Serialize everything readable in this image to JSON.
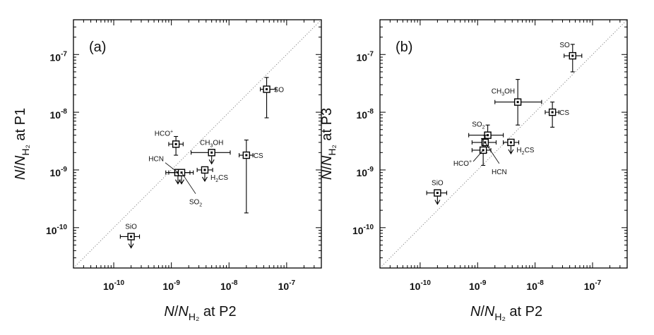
{
  "chart_data": [
    {
      "type": "scatter",
      "panel_label": "(a)",
      "xlabel": {
        "prefix": "N/N",
        "sub": "H₂",
        "suffix": " at P2"
      },
      "ylabel": {
        "prefix": "N/N",
        "sub": "H₂",
        "suffix": " at P1"
      },
      "x_scale": "log",
      "y_scale": "log",
      "xlim": [
        2e-11,
        4e-07
      ],
      "ylim": [
        2e-11,
        4e-07
      ],
      "x_ticks": [
        {
          "value": 1e-10,
          "base": "10",
          "exp": "-10"
        },
        {
          "value": 1e-09,
          "base": "10",
          "exp": "-9"
        },
        {
          "value": 1e-08,
          "base": "10",
          "exp": "-8"
        },
        {
          "value": 1e-07,
          "base": "10",
          "exp": "-7"
        }
      ],
      "y_ticks": [
        {
          "value": 1e-10,
          "base": "10",
          "exp": "-10"
        },
        {
          "value": 1e-09,
          "base": "10",
          "exp": "-9"
        },
        {
          "value": 1e-08,
          "base": "10",
          "exp": "-8"
        },
        {
          "value": 1e-07,
          "base": "10",
          "exp": "-7"
        }
      ],
      "diagonal": "y = x",
      "points": [
        {
          "label": "SO",
          "label_parts": [
            [
              "SO",
              "n"
            ]
          ],
          "x": 4.5e-08,
          "y": 2.5e-08,
          "x_err": [
            3.5e-08,
            6.5e-08
          ],
          "y_err": [
            8e-09,
            4e-08
          ],
          "upper_limit": false,
          "label_anchor": "right"
        },
        {
          "label": "CS",
          "label_parts": [
            [
              "CS",
              "n"
            ]
          ],
          "x": 2e-08,
          "y": 1.8e-09,
          "x_err": [
            1.5e-08,
            2.6e-08
          ],
          "y_err": [
            1.8e-10,
            3.3e-09
          ],
          "upper_limit": false,
          "label_anchor": "right"
        },
        {
          "label": "HCO+",
          "label_parts": [
            [
              "HCO",
              "n"
            ],
            [
              "+",
              "sup"
            ]
          ],
          "x": 1.2e-09,
          "y": 2.8e-09,
          "x_err": [
            9e-10,
            1.6e-09
          ],
          "y_err": [
            1.8e-09,
            3.8e-09
          ],
          "upper_limit": false,
          "label_anchor": "upleft"
        },
        {
          "label": "CH3OH",
          "label_parts": [
            [
              "CH",
              "n"
            ],
            [
              "3",
              "sub"
            ],
            [
              "OH",
              "n"
            ]
          ],
          "x": 5e-09,
          "y": 2e-09,
          "x_err": [
            2.2e-09,
            1.05e-08
          ],
          "y_err": null,
          "upper_limit": true,
          "label_anchor": "up"
        },
        {
          "label": "HCN",
          "label_parts": [
            [
              "HCN",
              "n"
            ]
          ],
          "x": 1.3e-09,
          "y": 9e-10,
          "x_err": [
            8e-10,
            2.1e-09
          ],
          "y_err": null,
          "upper_limit": true,
          "label_anchor": "leader-ul"
        },
        {
          "label": "SO2",
          "label_parts": [
            [
              "SO",
              "n"
            ],
            [
              "2",
              "sub"
            ]
          ],
          "x": 1.5e-09,
          "y": 9e-10,
          "x_err": [
            9e-10,
            2.4e-09
          ],
          "y_err": null,
          "upper_limit": true,
          "label_anchor": "leader-dr"
        },
        {
          "label": "H2CS",
          "label_parts": [
            [
              "H",
              "n"
            ],
            [
              "2",
              "sub"
            ],
            [
              "CS",
              "n"
            ]
          ],
          "x": 3.8e-09,
          "y": 1e-09,
          "x_err": [
            2.8e-09,
            5.2e-09
          ],
          "y_err": null,
          "upper_limit": true,
          "label_anchor": "right-low"
        },
        {
          "label": "SiO",
          "label_parts": [
            [
              "SiO",
              "n"
            ]
          ],
          "x": 2e-10,
          "y": 7e-11,
          "x_err": [
            1.3e-10,
            2.8e-10
          ],
          "y_err": null,
          "upper_limit": true,
          "label_anchor": "up"
        }
      ]
    },
    {
      "type": "scatter",
      "panel_label": "(b)",
      "xlabel": {
        "prefix": "N/N",
        "sub": "H₂",
        "suffix": " at P2"
      },
      "ylabel": {
        "prefix": "N/N",
        "sub": "H₂",
        "suffix": " at P3"
      },
      "x_scale": "log",
      "y_scale": "log",
      "xlim": [
        2e-11,
        4e-07
      ],
      "ylim": [
        2e-11,
        4e-07
      ],
      "x_ticks": [
        {
          "value": 1e-10,
          "base": "10",
          "exp": "-10"
        },
        {
          "value": 1e-09,
          "base": "10",
          "exp": "-9"
        },
        {
          "value": 1e-08,
          "base": "10",
          "exp": "-8"
        },
        {
          "value": 1e-07,
          "base": "10",
          "exp": "-7"
        }
      ],
      "y_ticks": [
        {
          "value": 1e-10,
          "base": "10",
          "exp": "-10"
        },
        {
          "value": 1e-09,
          "base": "10",
          "exp": "-9"
        },
        {
          "value": 1e-08,
          "base": "10",
          "exp": "-8"
        },
        {
          "value": 1e-07,
          "base": "10",
          "exp": "-7"
        }
      ],
      "diagonal": "y = x",
      "points": [
        {
          "label": "SO",
          "label_parts": [
            [
              "SO",
              "n"
            ]
          ],
          "x": 4.5e-08,
          "y": 9.5e-08,
          "x_err": [
            3.2e-08,
            6.5e-08
          ],
          "y_err": [
            5e-08,
            1.5e-07
          ],
          "upper_limit": false,
          "label_anchor": "upleft"
        },
        {
          "label": "CH3OH",
          "label_parts": [
            [
              "CH",
              "n"
            ],
            [
              "3",
              "sub"
            ],
            [
              "OH",
              "n"
            ]
          ],
          "x": 5e-09,
          "y": 1.5e-08,
          "x_err": [
            2e-09,
            1.3e-08
          ],
          "y_err": [
            6e-09,
            3.7e-08
          ],
          "upper_limit": false,
          "label_anchor": "upleft"
        },
        {
          "label": "CS",
          "label_parts": [
            [
              "CS",
              "n"
            ]
          ],
          "x": 2e-08,
          "y": 1e-08,
          "x_err": [
            1.5e-08,
            2.6e-08
          ],
          "y_err": [
            5.5e-09,
            1.5e-08
          ],
          "upper_limit": false,
          "label_anchor": "right"
        },
        {
          "label": "SO2",
          "label_parts": [
            [
              "SO",
              "n"
            ],
            [
              "2",
              "sub"
            ]
          ],
          "x": 1.5e-09,
          "y": 4e-09,
          "x_err": [
            7e-10,
            2.8e-09
          ],
          "y_err": [
            2.5e-09,
            6e-09
          ],
          "upper_limit": false,
          "label_anchor": "upleft"
        },
        {
          "label": "H2CS",
          "label_parts": [
            [
              "H",
              "n"
            ],
            [
              "2",
              "sub"
            ],
            [
              "CS",
              "n"
            ]
          ],
          "x": 3.8e-09,
          "y": 3e-09,
          "x_err": [
            2.8e-09,
            5.2e-09
          ],
          "y_err": null,
          "upper_limit": true,
          "label_anchor": "right-low"
        },
        {
          "label": "HCN",
          "label_parts": [
            [
              "HCN",
              "n"
            ]
          ],
          "x": 1.35e-09,
          "y": 3e-09,
          "x_err": [
            8e-10,
            2.1e-09
          ],
          "y_err": [
            2e-09,
            4e-09
          ],
          "upper_limit": false,
          "label_anchor": "leader-dr"
        },
        {
          "label": "HCO+",
          "label_parts": [
            [
              "HCO",
              "n"
            ],
            [
              "+",
              "sup"
            ]
          ],
          "x": 1.25e-09,
          "y": 2.2e-09,
          "x_err": [
            8e-10,
            1.7e-09
          ],
          "y_err": [
            1.2e-09,
            3.5e-09
          ],
          "upper_limit": false,
          "label_anchor": "leader-dl"
        },
        {
          "label": "SiO",
          "label_parts": [
            [
              "SiO",
              "n"
            ]
          ],
          "x": 2e-10,
          "y": 4e-10,
          "x_err": [
            1.3e-10,
            2.9e-10
          ],
          "y_err": null,
          "upper_limit": true,
          "label_anchor": "up"
        }
      ]
    }
  ]
}
